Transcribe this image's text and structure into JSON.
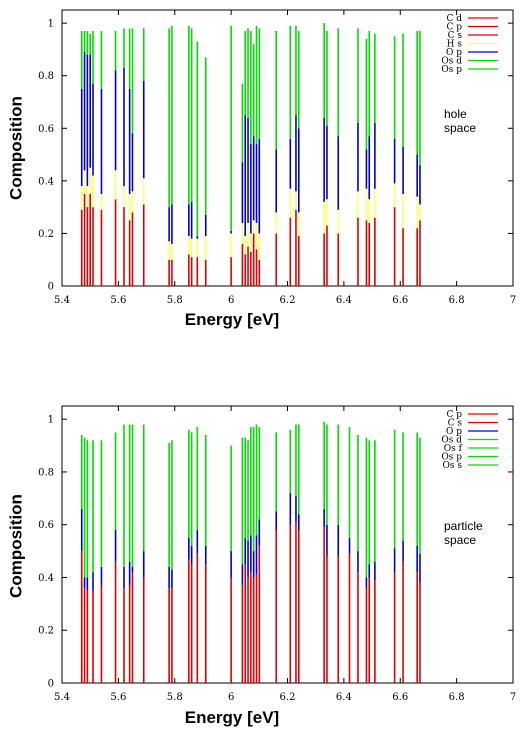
{
  "colors": {
    "red": "#e00000",
    "blue": "#0000cc",
    "green": "#00dd00",
    "yellow": "#ffff66"
  },
  "chart_data": [
    {
      "type": "bar",
      "orientation": "stacked-vertical-lines",
      "xlabel": "Energy [eV]",
      "ylabel": "Composition",
      "xlim": [
        5.4,
        7
      ],
      "ylim": [
        0,
        1.05
      ],
      "xticks": [
        "5.4",
        "5.6",
        "5.8",
        "6",
        "6.2",
        "6.4",
        "6.6",
        "6.8",
        "7"
      ],
      "yticks": [
        "0",
        "0.2",
        "0.4",
        "0.6",
        "0.8",
        "1"
      ],
      "annotation": [
        "hole",
        "space"
      ],
      "legend": [
        {
          "name": "C d",
          "color": "#e00000"
        },
        {
          "name": "C p",
          "color": "#e00000"
        },
        {
          "name": "C s",
          "color": "#e00000"
        },
        {
          "name": "H s",
          "color": "#ffff66"
        },
        {
          "name": "O p",
          "color": "#0000cc"
        },
        {
          "name": "Os d",
          "color": "#00dd00"
        },
        {
          "name": "Os p",
          "color": "#00dd00"
        }
      ],
      "lines": [
        {
          "x": 5.47,
          "red": 0.29,
          "yellow": 0.09,
          "blue": 0.37,
          "green": 0.22
        },
        {
          "x": 5.48,
          "red": 0.35,
          "yellow": 0.09,
          "blue": 0.45,
          "green": 0.08
        },
        {
          "x": 5.49,
          "red": 0.3,
          "yellow": 0.08,
          "blue": 0.5,
          "green": 0.09
        },
        {
          "x": 5.5,
          "red": 0.35,
          "yellow": 0.1,
          "blue": 0.43,
          "green": 0.08
        },
        {
          "x": 5.51,
          "red": 0.3,
          "yellow": 0.12,
          "blue": 0.35,
          "green": 0.2
        },
        {
          "x": 5.54,
          "red": 0.29,
          "yellow": 0.06,
          "blue": 0.4,
          "green": 0.22
        },
        {
          "x": 5.59,
          "red": 0.33,
          "yellow": 0.11,
          "blue": 0.38,
          "green": 0.15
        },
        {
          "x": 5.62,
          "red": 0.3,
          "yellow": 0.08,
          "blue": 0.45,
          "green": 0.15
        },
        {
          "x": 5.64,
          "red": 0.25,
          "yellow": 0.1,
          "blue": 0.4,
          "green": 0.23
        },
        {
          "x": 5.65,
          "red": 0.28,
          "yellow": 0.08,
          "blue": 0.22,
          "green": 0.4
        },
        {
          "x": 5.69,
          "red": 0.31,
          "yellow": 0.1,
          "blue": 0.37,
          "green": 0.2
        },
        {
          "x": 5.78,
          "red": 0.1,
          "yellow": 0.07,
          "blue": 0.13,
          "green": 0.68
        },
        {
          "x": 5.79,
          "red": 0.1,
          "yellow": 0.06,
          "blue": 0.15,
          "green": 0.68
        },
        {
          "x": 5.85,
          "red": 0.12,
          "yellow": 0.07,
          "blue": 0.12,
          "green": 0.68
        },
        {
          "x": 5.86,
          "red": 0.11,
          "yellow": 0.07,
          "blue": 0.14,
          "green": 0.66
        },
        {
          "x": 5.88,
          "red": 0.11,
          "yellow": 0.07,
          "blue": 0.01,
          "green": 0.74
        },
        {
          "x": 5.91,
          "red": 0.1,
          "yellow": 0.09,
          "blue": 0.08,
          "green": 0.6
        },
        {
          "x": 6.0,
          "red": 0.11,
          "yellow": 0.09,
          "blue": 0.01,
          "green": 0.78
        },
        {
          "x": 6.04,
          "red": 0.16,
          "yellow": 0.08,
          "blue": 0.23,
          "green": 0.3
        },
        {
          "x": 6.05,
          "red": 0.12,
          "yellow": 0.07,
          "blue": 0.46,
          "green": 0.32
        },
        {
          "x": 6.06,
          "red": 0.15,
          "yellow": 0.09,
          "blue": 0.4,
          "green": 0.34
        },
        {
          "x": 6.07,
          "red": 0.13,
          "yellow": 0.07,
          "blue": 0.34,
          "green": 0.43
        },
        {
          "x": 6.08,
          "red": 0.2,
          "yellow": 0.05,
          "blue": 0.32,
          "green": 0.35
        },
        {
          "x": 6.09,
          "red": 0.14,
          "yellow": 0.1,
          "blue": 0.3,
          "green": 0.45
        },
        {
          "x": 6.1,
          "red": 0.1,
          "yellow": 0.1,
          "blue": 0.36,
          "green": 0.42
        },
        {
          "x": 6.16,
          "red": 0.2,
          "yellow": 0.08,
          "blue": 0.24,
          "green": 0.45
        },
        {
          "x": 6.21,
          "red": 0.26,
          "yellow": 0.11,
          "blue": 0.19,
          "green": 0.43
        },
        {
          "x": 6.23,
          "red": 0.29,
          "yellow": 0.07,
          "blue": 0.29,
          "green": 0.34
        },
        {
          "x": 6.24,
          "red": 0.19,
          "yellow": 0.09,
          "blue": 0.32,
          "green": 0.37
        },
        {
          "x": 6.33,
          "red": 0.2,
          "yellow": 0.12,
          "blue": 0.32,
          "green": 0.36
        },
        {
          "x": 6.34,
          "red": 0.23,
          "yellow": 0.1,
          "blue": 0.28,
          "green": 0.36
        },
        {
          "x": 6.38,
          "red": 0.2,
          "yellow": 0.09,
          "blue": 0.28,
          "green": 0.41
        },
        {
          "x": 6.45,
          "red": 0.26,
          "yellow": 0.1,
          "blue": 0.26,
          "green": 0.36
        },
        {
          "x": 6.48,
          "red": 0.25,
          "yellow": 0.12,
          "blue": 0.15,
          "green": 0.42
        },
        {
          "x": 6.49,
          "red": 0.24,
          "yellow": 0.09,
          "blue": 0.24,
          "green": 0.4
        },
        {
          "x": 6.51,
          "red": 0.26,
          "yellow": 0.11,
          "blue": 0.25,
          "green": 0.34
        },
        {
          "x": 6.58,
          "red": 0.3,
          "yellow": 0.09,
          "blue": 0.17,
          "green": 0.39
        },
        {
          "x": 6.61,
          "red": 0.22,
          "yellow": 0.13,
          "blue": 0.18,
          "green": 0.43
        },
        {
          "x": 6.66,
          "red": 0.22,
          "yellow": 0.12,
          "blue": 0.16,
          "green": 0.47
        },
        {
          "x": 6.67,
          "red": 0.25,
          "yellow": 0.06,
          "blue": 0.15,
          "green": 0.51
        }
      ]
    },
    {
      "type": "bar",
      "orientation": "stacked-vertical-lines",
      "xlabel": "Energy [eV]",
      "ylabel": "Composition",
      "xlim": [
        5.4,
        7
      ],
      "ylim": [
        0,
        1.05
      ],
      "xticks": [
        "5.4",
        "5.6",
        "5.8",
        "6",
        "6.2",
        "6.4",
        "6.6",
        "6.8",
        "7"
      ],
      "yticks": [
        "0",
        "0.2",
        "0.4",
        "0.6",
        "0.8",
        "1"
      ],
      "annotation": [
        "particle",
        "space"
      ],
      "legend": [
        {
          "name": "C p",
          "color": "#e00000"
        },
        {
          "name": "C s",
          "color": "#e00000"
        },
        {
          "name": "O p",
          "color": "#0000cc"
        },
        {
          "name": "Os d",
          "color": "#00dd00"
        },
        {
          "name": "Os f",
          "color": "#00dd00"
        },
        {
          "name": "Os p",
          "color": "#00dd00"
        },
        {
          "name": "Os s",
          "color": "#00dd00"
        }
      ],
      "lines": [
        {
          "x": 5.47,
          "red": 0.5,
          "blue": 0.16,
          "green": 0.28
        },
        {
          "x": 5.48,
          "red": 0.36,
          "blue": 0.04,
          "green": 0.53
        },
        {
          "x": 5.49,
          "red": 0.35,
          "blue": 0.05,
          "green": 0.52
        },
        {
          "x": 5.51,
          "red": 0.35,
          "blue": 0.07,
          "green": 0.5
        },
        {
          "x": 5.54,
          "red": 0.37,
          "blue": 0.07,
          "green": 0.48
        },
        {
          "x": 5.59,
          "red": 0.46,
          "blue": 0.12,
          "green": 0.37
        },
        {
          "x": 5.62,
          "red": 0.36,
          "blue": 0.08,
          "green": 0.54
        },
        {
          "x": 5.64,
          "red": 0.37,
          "blue": 0.09,
          "green": 0.52
        },
        {
          "x": 5.65,
          "red": 0.42,
          "blue": 0.02,
          "green": 0.54
        },
        {
          "x": 5.69,
          "red": 0.4,
          "blue": 0.1,
          "green": 0.48
        },
        {
          "x": 5.78,
          "red": 0.36,
          "blue": 0.08,
          "green": 0.47
        },
        {
          "x": 5.79,
          "red": 0.36,
          "blue": 0.07,
          "green": 0.49
        },
        {
          "x": 5.85,
          "red": 0.47,
          "blue": 0.08,
          "green": 0.41
        },
        {
          "x": 5.86,
          "red": 0.45,
          "blue": 0.07,
          "green": 0.43
        },
        {
          "x": 5.88,
          "red": 0.49,
          "blue": 0.09,
          "green": 0.39
        },
        {
          "x": 5.91,
          "red": 0.45,
          "blue": 0.07,
          "green": 0.42
        },
        {
          "x": 6.0,
          "red": 0.4,
          "blue": 0.1,
          "green": 0.4
        },
        {
          "x": 6.04,
          "red": 0.37,
          "blue": 0.08,
          "green": 0.48
        },
        {
          "x": 6.05,
          "red": 0.45,
          "blue": 0.1,
          "green": 0.38
        },
        {
          "x": 6.06,
          "red": 0.4,
          "blue": 0.14,
          "green": 0.38
        },
        {
          "x": 6.07,
          "red": 0.42,
          "blue": 0.14,
          "green": 0.41
        },
        {
          "x": 6.08,
          "red": 0.4,
          "blue": 0.1,
          "green": 0.47
        },
        {
          "x": 6.09,
          "red": 0.41,
          "blue": 0.15,
          "green": 0.42
        },
        {
          "x": 6.1,
          "red": 0.52,
          "blue": 0.1,
          "green": 0.35
        },
        {
          "x": 6.16,
          "red": 0.58,
          "blue": 0.07,
          "green": 0.3
        },
        {
          "x": 6.21,
          "red": 0.6,
          "blue": 0.12,
          "green": 0.24
        },
        {
          "x": 6.23,
          "red": 0.61,
          "blue": 0.1,
          "green": 0.27
        },
        {
          "x": 6.24,
          "red": 0.58,
          "blue": 0.06,
          "green": 0.34
        },
        {
          "x": 6.33,
          "red": 0.59,
          "blue": 0.07,
          "green": 0.33
        },
        {
          "x": 6.34,
          "red": 0.48,
          "blue": 0.12,
          "green": 0.38
        },
        {
          "x": 6.38,
          "red": 0.48,
          "blue": 0.12,
          "green": 0.38
        },
        {
          "x": 6.42,
          "red": 0.49,
          "blue": 0.06,
          "green": 0.42
        },
        {
          "x": 6.45,
          "red": 0.42,
          "blue": 0.08,
          "green": 0.44
        },
        {
          "x": 6.48,
          "red": 0.36,
          "blue": 0.04,
          "green": 0.53
        },
        {
          "x": 6.49,
          "red": 0.4,
          "blue": 0.05,
          "green": 0.47
        },
        {
          "x": 6.51,
          "red": 0.39,
          "blue": 0.07,
          "green": 0.46
        },
        {
          "x": 6.58,
          "red": 0.42,
          "blue": 0.09,
          "green": 0.45
        },
        {
          "x": 6.61,
          "red": 0.46,
          "blue": 0.08,
          "green": 0.41
        },
        {
          "x": 6.66,
          "red": 0.42,
          "blue": 0.1,
          "green": 0.43
        },
        {
          "x": 6.67,
          "red": 0.38,
          "blue": 0.11,
          "green": 0.44
        }
      ]
    }
  ]
}
